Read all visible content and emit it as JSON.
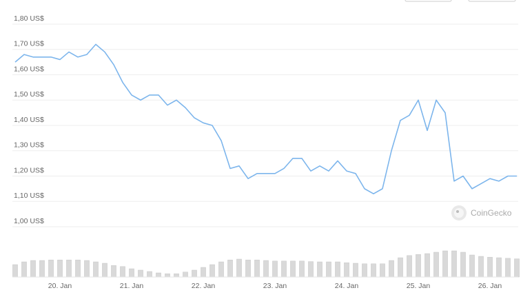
{
  "chart_data": {
    "type": "line",
    "categories": [
      null,
      null,
      null,
      null,
      null,
      "20. Jan",
      null,
      null,
      null,
      null,
      null,
      null,
      null,
      "21. Jan",
      null,
      null,
      null,
      null,
      null,
      null,
      null,
      "22. Jan",
      null,
      null,
      null,
      null,
      null,
      null,
      null,
      "23. Jan",
      null,
      null,
      null,
      null,
      null,
      null,
      null,
      "24. Jan",
      null,
      null,
      null,
      null,
      null,
      null,
      null,
      "25. Jan",
      null,
      null,
      null,
      null,
      null,
      null,
      null,
      "26. Jan",
      null,
      null,
      null
    ],
    "series": [
      {
        "color": "#7cb5ec",
        "values": [
          1.65,
          1.68,
          1.67,
          1.67,
          1.67,
          1.66,
          1.69,
          1.67,
          1.68,
          1.72,
          1.69,
          1.64,
          1.57,
          1.52,
          1.5,
          1.52,
          1.52,
          1.48,
          1.5,
          1.47,
          1.43,
          1.41,
          1.4,
          1.34,
          1.23,
          1.24,
          1.19,
          1.21,
          1.21,
          1.21,
          1.23,
          1.27,
          1.27,
          1.22,
          1.24,
          1.22,
          1.26,
          1.22,
          1.21,
          1.15,
          1.13,
          1.15,
          1.3,
          1.42,
          1.44,
          1.5,
          1.38,
          1.5,
          1.45,
          1.18,
          1.2,
          1.15,
          1.17,
          1.19,
          1.18,
          1.2,
          1.2
        ]
      },
      {
        "color": "#d9d9d9",
        "axis": "y2",
        "values": [
          45,
          55,
          60,
          60,
          62,
          62,
          62,
          62,
          60,
          55,
          50,
          42,
          38,
          30,
          25,
          20,
          15,
          12,
          12,
          18,
          25,
          35,
          45,
          55,
          62,
          65,
          62,
          62,
          60,
          58,
          58,
          58,
          58,
          56,
          55,
          55,
          55,
          52,
          50,
          48,
          48,
          48,
          60,
          70,
          78,
          82,
          85,
          90,
          95,
          95,
          90,
          80,
          75,
          72,
          70,
          68,
          66
        ]
      }
    ],
    "ylim": [
      1.0,
      1.8
    ],
    "yticks": [
      {
        "value": 1.0,
        "label": "1,00 US$"
      },
      {
        "value": 1.1,
        "label": "1,10 US$"
      },
      {
        "value": 1.2,
        "label": "1,20 US$"
      },
      {
        "value": 1.3,
        "label": "1,30 US$"
      },
      {
        "value": 1.4,
        "label": "1,40 US$"
      },
      {
        "value": 1.5,
        "label": "1,50 US$"
      },
      {
        "value": 1.6,
        "label": "1,60 US$"
      },
      {
        "value": 1.7,
        "label": "1,70 US$"
      },
      {
        "value": 1.8,
        "label": "1,80 US$"
      }
    ],
    "y2lim": [
      0,
      100
    ],
    "grid": true,
    "watermark": "CoinGecko"
  }
}
